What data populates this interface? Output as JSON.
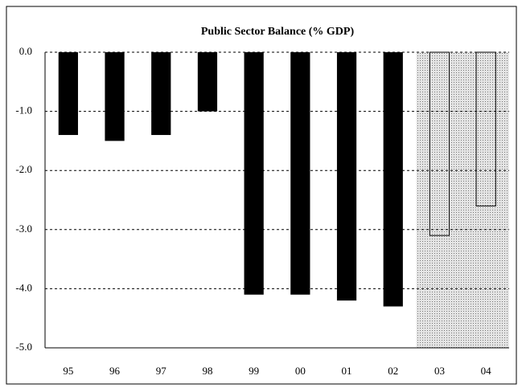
{
  "chart_data": {
    "type": "bar",
    "title": "Public Sector Balance (% GDP)",
    "categories": [
      "95",
      "96",
      "97",
      "98",
      "99",
      "00",
      "01",
      "02",
      "03",
      "04"
    ],
    "values": [
      -1.4,
      -1.5,
      -1.4,
      -1.0,
      -4.1,
      -4.1,
      -4.2,
      -4.3,
      -3.1,
      -2.6
    ],
    "colors": [
      "#000000",
      "#000000",
      "#000000",
      "#000000",
      "#000000",
      "#000000",
      "#000000",
      "#000000",
      "none",
      "none"
    ],
    "shaded_categories": [
      "03",
      "04"
    ],
    "ylim": [
      -5,
      0
    ],
    "yticks": [
      {
        "value": 0,
        "label": "0.0"
      },
      {
        "value": -1,
        "label": "-1.0"
      },
      {
        "value": -2,
        "label": "-2.0"
      },
      {
        "value": -3,
        "label": "-3.0"
      },
      {
        "value": -4,
        "label": "-4.0"
      },
      {
        "value": -5,
        "label": "-5.0"
      }
    ],
    "grid": true
  }
}
